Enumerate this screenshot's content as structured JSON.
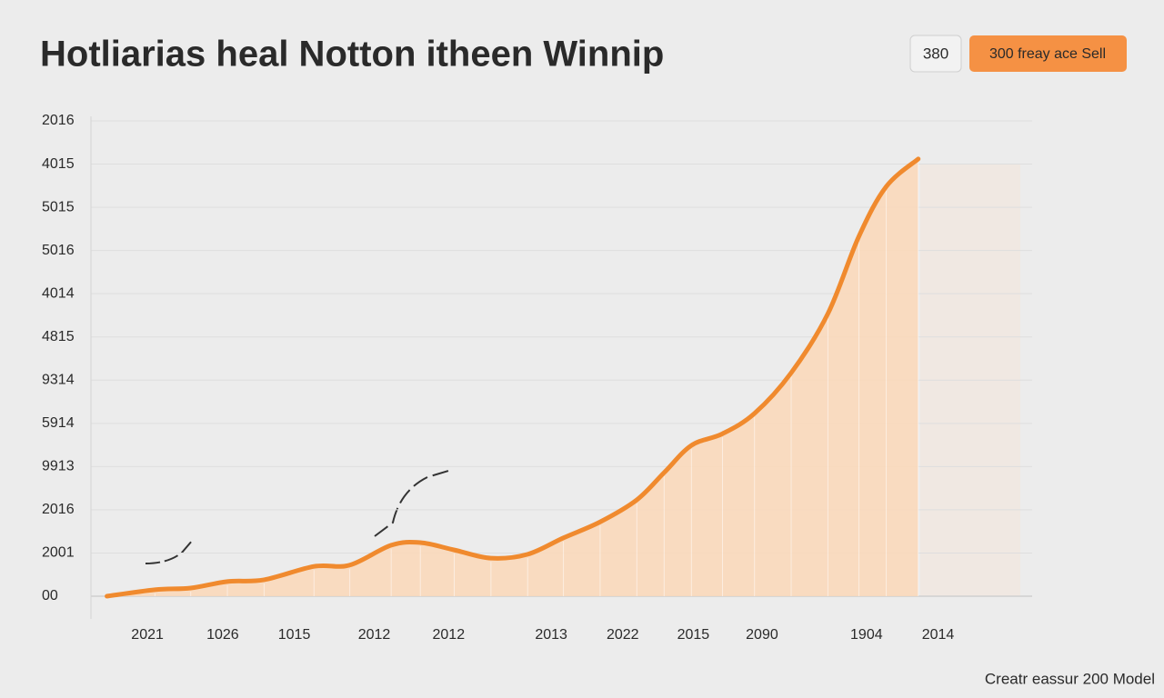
{
  "chart_data": {
    "type": "area",
    "title": "Hotliarias heal Notton itheen Winnip",
    "footer": "Creatr eassur 200 Model",
    "buttons": [
      "380",
      "300 freay ace Sell"
    ],
    "x": [
      1.7,
      6.8,
      10.6,
      14.5,
      18.4,
      23.7,
      27.5,
      31.9,
      35,
      38.6,
      42.5,
      46.4,
      50.2,
      54.1,
      58,
      60.9,
      63.8,
      67.1,
      70.5,
      74.4,
      78.3,
      81.6,
      84.5,
      87.9
    ],
    "series": [
      {
        "color": "#f08a2e",
        "fill": "#fcd8b8",
        "values": [
          0,
          0.15,
          0.19,
          0.34,
          0.38,
          0.69,
          0.72,
          1.18,
          1.24,
          1.07,
          0.88,
          0.97,
          1.35,
          1.72,
          2.23,
          2.86,
          3.49,
          3.76,
          4.23,
          5.17,
          6.54,
          8.33,
          9.48,
          10.12
        ]
      }
    ],
    "xlim": [
      0,
      100
    ],
    "xticks": [
      {
        "value": 6,
        "label": "2021"
      },
      {
        "value": 14,
        "label": "1026"
      },
      {
        "value": 21.6,
        "label": "1015"
      },
      {
        "value": 30.1,
        "label": "2012"
      },
      {
        "value": 38,
        "label": "2012"
      },
      {
        "value": 48.9,
        "label": "2013"
      },
      {
        "value": 56.5,
        "label": "2022"
      },
      {
        "value": 64,
        "label": "2015"
      },
      {
        "value": 71.3,
        "label": "2090"
      },
      {
        "value": 82.4,
        "label": "1904"
      },
      {
        "value": 90,
        "label": "2014"
      }
    ],
    "ylim": [
      0,
      11
    ],
    "yticks": [
      {
        "value": 0,
        "label": "00"
      },
      {
        "value": 1,
        "label": "2001"
      },
      {
        "value": 2,
        "label": "2016"
      },
      {
        "value": 3,
        "label": "9913"
      },
      {
        "value": 4,
        "label": "5914"
      },
      {
        "value": 5,
        "label": "9314"
      },
      {
        "value": 6,
        "label": "4815"
      },
      {
        "value": 7,
        "label": "4014"
      },
      {
        "value": 8,
        "label": "5016"
      },
      {
        "value": 9,
        "label": "5015"
      },
      {
        "value": 10,
        "label": "4015"
      },
      {
        "value": 11,
        "label": "2016"
      }
    ],
    "grid": true
  }
}
